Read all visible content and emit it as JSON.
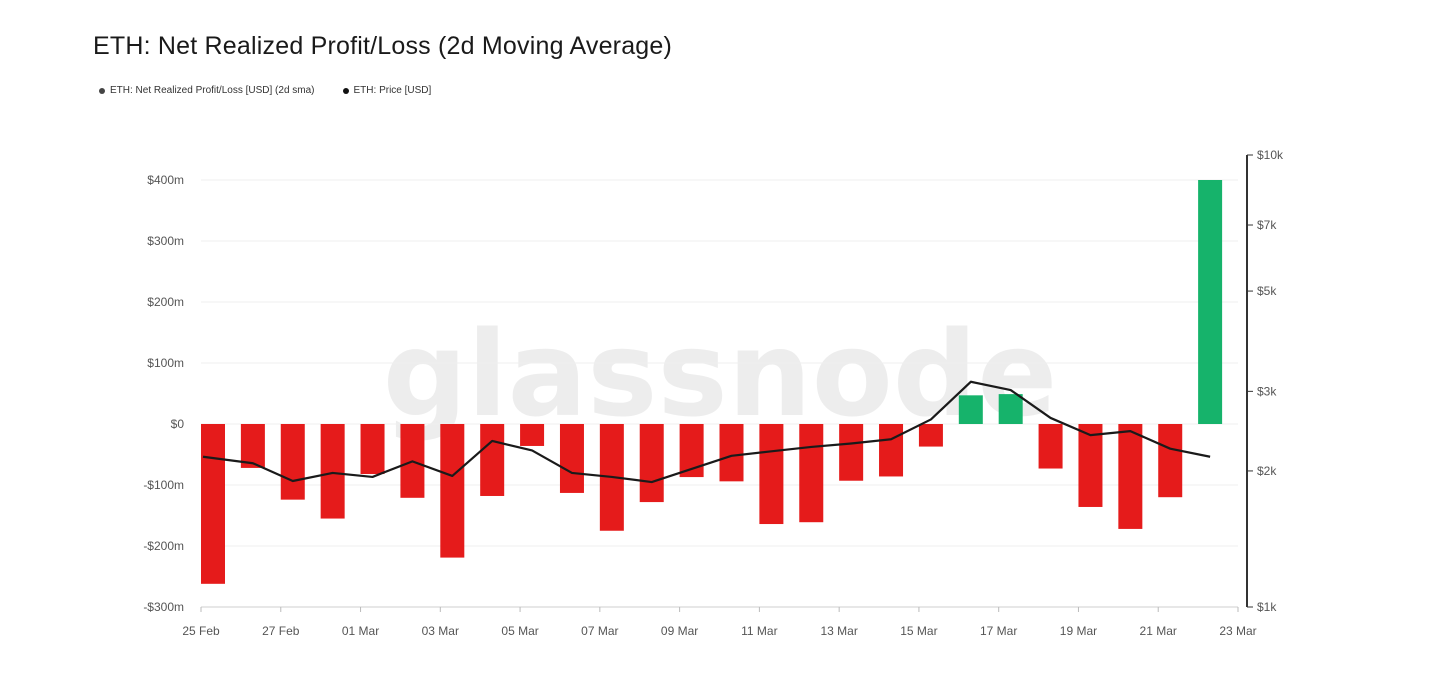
{
  "title": "ETH: Net Realized Profit/Loss (2d Moving Average)",
  "watermark": "glassnode",
  "legend": [
    {
      "label": "ETH: Net Realized Profit/Loss [USD] (2d sma)",
      "color": "#444444"
    },
    {
      "label": "ETH: Price [USD]",
      "color": "#111111"
    }
  ],
  "colors": {
    "positive": "#16b36b",
    "negative": "#e51b1b",
    "price": "#1a1a1a",
    "grid": "#efefef"
  },
  "chart_data": {
    "type": "bar",
    "title": "ETH: Net Realized Profit/Loss (2d Moving Average)",
    "dates": [
      "25 Feb",
      "26 Feb",
      "27 Feb",
      "28 Feb",
      "01 Mar",
      "02 Mar",
      "03 Mar",
      "04 Mar",
      "05 Mar",
      "06 Mar",
      "07 Mar",
      "08 Mar",
      "09 Mar",
      "10 Mar",
      "11 Mar",
      "12 Mar",
      "13 Mar",
      "14 Mar",
      "15 Mar",
      "16 Mar",
      "17 Mar",
      "18 Mar",
      "19 Mar",
      "20 Mar",
      "21 Mar",
      "22 Mar"
    ],
    "series": [
      {
        "name": "ETH: Net Realized Profit/Loss [USD] (2d sma)",
        "axis": "left",
        "unit": "USD millions",
        "values": [
          -262,
          -72,
          -124,
          -155,
          -82,
          -121,
          -219,
          -118,
          -36,
          -113,
          -175,
          -128,
          -87,
          -94,
          -164,
          -161,
          -93,
          -86,
          -37,
          47,
          49,
          -73,
          -136,
          -172,
          -120,
          400
        ]
      },
      {
        "name": "ETH: Price [USD]",
        "axis": "right",
        "type": "line",
        "unit": "USD",
        "values": [
          2150,
          2080,
          1900,
          1980,
          1940,
          2100,
          1950,
          2330,
          2220,
          1980,
          1940,
          1890,
          2020,
          2160,
          2210,
          2260,
          2300,
          2350,
          2600,
          3150,
          3020,
          2620,
          2400,
          2450,
          2240,
          2150
        ]
      }
    ],
    "y_left": {
      "ticks": [
        400,
        300,
        200,
        100,
        0,
        -100,
        -200,
        -300
      ],
      "labels": [
        "$400m",
        "$300m",
        "$200m",
        "$100m",
        "$0",
        "-$100m",
        "-$200m",
        "-$300m"
      ],
      "range": [
        -300,
        400
      ]
    },
    "y_right": {
      "scale": "log",
      "ticks": [
        10000,
        7000,
        5000,
        3000,
        2000,
        1000
      ],
      "labels": [
        "$10k",
        "$7k",
        "$5k",
        "$3k",
        "$2k",
        "$1k"
      ],
      "range": [
        1000,
        10000
      ]
    },
    "x_ticks": [
      "25 Feb",
      "27 Feb",
      "01 Mar",
      "03 Mar",
      "05 Mar",
      "07 Mar",
      "09 Mar",
      "11 Mar",
      "13 Mar",
      "15 Mar",
      "17 Mar",
      "19 Mar",
      "21 Mar",
      "23 Mar"
    ]
  }
}
